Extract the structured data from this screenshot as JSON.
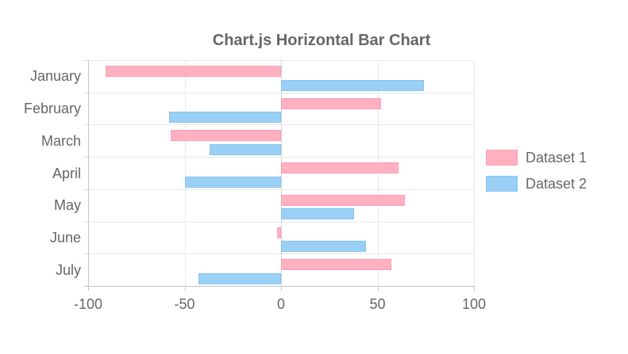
{
  "title": "Chart.js Horizontal Bar Chart",
  "chart_data": {
    "type": "bar",
    "orientation": "horizontal",
    "title": "Chart.js Horizontal Bar Chart",
    "categories": [
      "January",
      "February",
      "March",
      "April",
      "May",
      "June",
      "July"
    ],
    "series": [
      {
        "name": "Dataset 1",
        "fill_color": "#ffb1c1",
        "border_color": "#ff9eb2",
        "values": [
          -91,
          52,
          -57,
          61,
          64,
          -2,
          57
        ]
      },
      {
        "name": "Dataset 2",
        "fill_color": "#9ad0f5",
        "border_color": "#86c4f0",
        "values": [
          74,
          -58,
          -37,
          -50,
          38,
          44,
          -43
        ]
      }
    ],
    "xlabel": "",
    "ylabel": "",
    "xlim": [
      -100,
      100
    ],
    "x_ticks": [
      -100,
      -50,
      0,
      50,
      100
    ],
    "grid": true,
    "legend_position": "right",
    "zero_line": true
  },
  "colors": {
    "text": "#666666",
    "gridline": "#e9e9e9",
    "zero_line": "#d4d4d4",
    "axis_line": "#c3c3c3",
    "background": "#ffffff"
  }
}
